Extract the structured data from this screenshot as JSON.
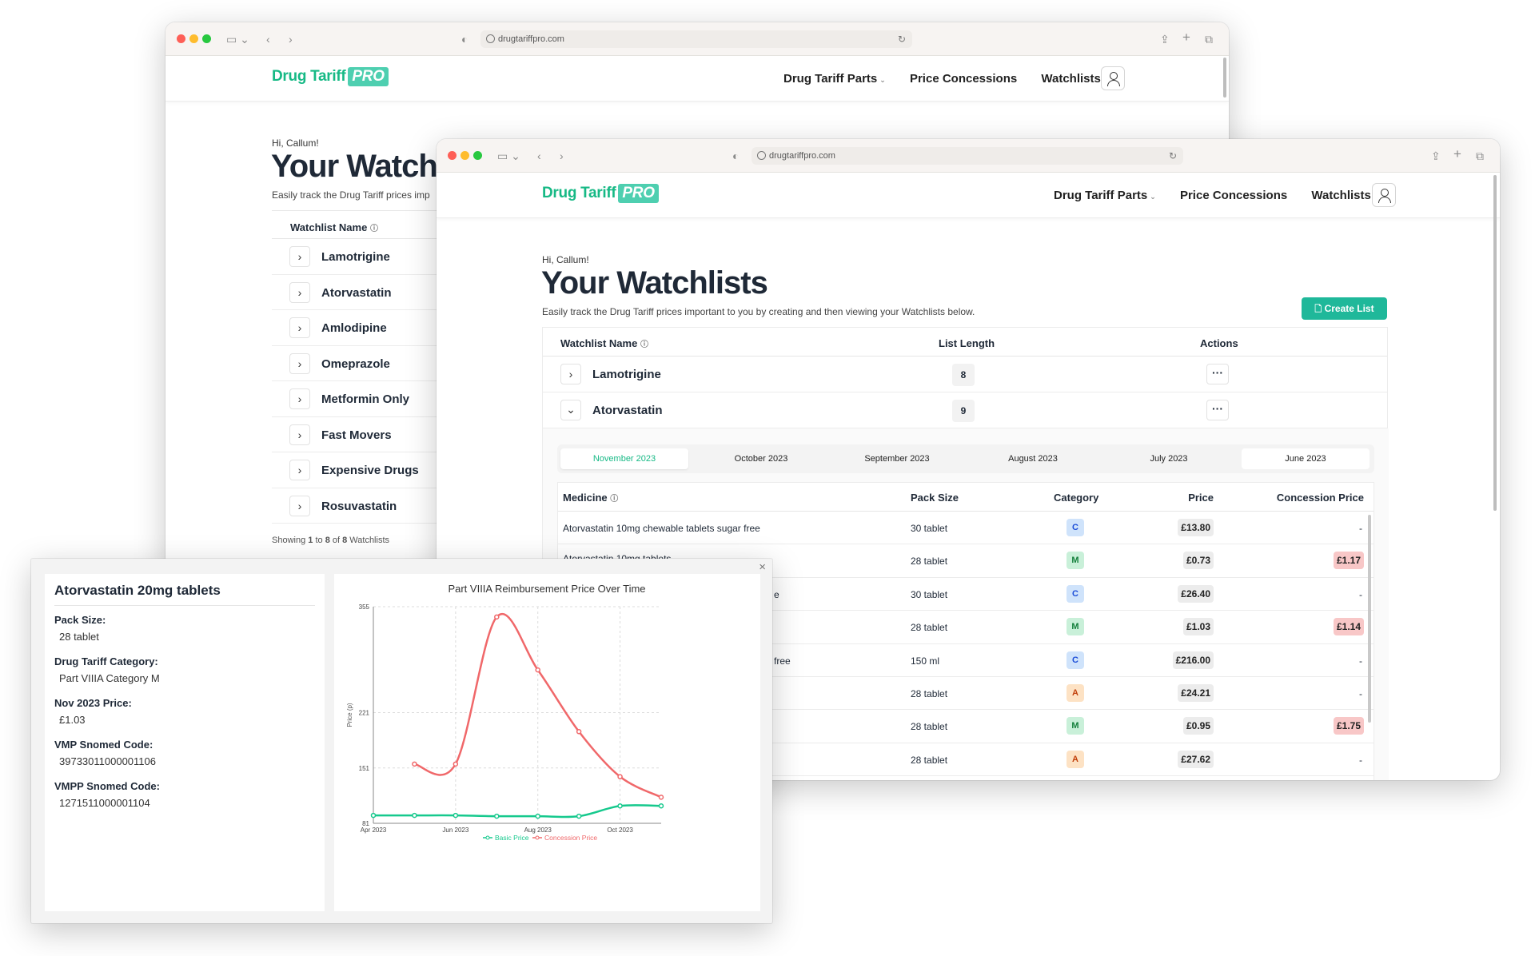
{
  "browser": {
    "url": "drugtariffpro.com"
  },
  "brand": {
    "name": "Drug Tariff",
    "badge": "PRO",
    "accent": "#16b985"
  },
  "nav": {
    "parts": "Drug Tariff Parts",
    "concessions": "Price Concessions",
    "watchlists": "Watchlists",
    "caret": "⌄"
  },
  "page": {
    "greeting": "Hi, Callum!",
    "title": "Your Watchlists",
    "title_back": "Your Watchli",
    "subtitle": "Easily track the Drug Tariff prices important to you by creating and then viewing your Watchlists below.",
    "subtitle_back": "Easily track the Drug Tariff prices imp",
    "create_button": "Create List",
    "showing": {
      "pre": "Showing ",
      "from": "1",
      "mid1": " to ",
      "to": "8",
      "mid2": " of ",
      "total": "8",
      "post": " Watchlists"
    }
  },
  "table": {
    "col_name": "Watchlist Name",
    "col_length": "List Length",
    "col_actions": "Actions",
    "back_rows": [
      "Lamotrigine",
      "Atorvastatin",
      "Amlodipine",
      "Omeprazole",
      "Metformin Only",
      "Fast Movers",
      "Expensive Drugs",
      "Rosuvastatin"
    ],
    "front_rows": [
      {
        "name": "Lamotrigine",
        "length": "8"
      },
      {
        "name": "Atorvastatin",
        "length": "9"
      }
    ]
  },
  "months": [
    "November 2023",
    "October 2023",
    "September 2023",
    "August 2023",
    "July 2023",
    "June 2023"
  ],
  "medicines": {
    "col_medicine": "Medicine",
    "col_pack": "Pack Size",
    "col_category": "Category",
    "col_price": "Price",
    "col_concession": "Concession Price",
    "rows": [
      {
        "name": "Atorvastatin 10mg chewable tablets sugar free",
        "pack": "30 tablet",
        "cat": "C",
        "price": "£13.80",
        "conc": "-"
      },
      {
        "name": "Atorvastatin 10mg tablets",
        "pack": "28 tablet",
        "cat": "M",
        "price": "£0.73",
        "conc": "£1.17"
      },
      {
        "name": "e",
        "pack": "30 tablet",
        "cat": "C",
        "price": "£26.40",
        "conc": "-"
      },
      {
        "name": "",
        "pack": "28 tablet",
        "cat": "M",
        "price": "£1.03",
        "conc": "£1.14"
      },
      {
        "name": "free",
        "pack": "150 ml",
        "cat": "C",
        "price": "£216.00",
        "conc": "-"
      },
      {
        "name": "",
        "pack": "28 tablet",
        "cat": "A",
        "price": "£24.21",
        "conc": "-"
      },
      {
        "name": "",
        "pack": "28 tablet",
        "cat": "M",
        "price": "£0.95",
        "conc": "£1.75"
      },
      {
        "name": "",
        "pack": "28 tablet",
        "cat": "A",
        "price": "£27.62",
        "conc": "-"
      }
    ],
    "cat_colors": {
      "C": "#cfe3fb",
      "M": "#c9f0d9",
      "A": "#fde2c4"
    },
    "cat_text": {
      "C": "#1d4ed8",
      "M": "#15803d",
      "A": "#c2410c"
    }
  },
  "detail": {
    "title": "Atorvastatin 20mg tablets",
    "pack_label": "Pack Size:",
    "pack_value": "28 tablet",
    "cat_label": "Drug Tariff Category:",
    "cat_value": "Part VIIIA Category M",
    "price_label": "Nov 2023 Price:",
    "price_value": "£1.03",
    "vmp_label": "VMP Snomed Code:",
    "vmp_value": "39733011000001106",
    "vmpp_label": "VMPP Snomed Code:",
    "vmpp_value": "1271511000001104",
    "close": "×"
  },
  "chart_data": {
    "type": "line",
    "title": "Part VIIIA Reimbursement Price Over Time",
    "xlabel": "",
    "ylabel": "Price (p)",
    "x_ticks": [
      "Apr 2023",
      "Jun 2023",
      "Aug 2023",
      "Oct 2023"
    ],
    "y_ticks": [
      81,
      151,
      221,
      355
    ],
    "ylim": [
      81,
      355
    ],
    "x": [
      "Apr 2023",
      "May 2023",
      "Jun 2023",
      "Jul 2023",
      "Aug 2023",
      "Sep 2023",
      "Oct 2023",
      "Nov 2023"
    ],
    "grid": true,
    "legend": "bottom",
    "series": [
      {
        "name": "Basic Price",
        "color": "#16c98d",
        "values": [
          91,
          91,
          91,
          90,
          90,
          90,
          103,
          103
        ]
      },
      {
        "name": "Concession Price",
        "color": "#f0686a",
        "values": [
          null,
          156,
          156,
          342,
          275,
          197,
          140,
          114
        ]
      }
    ]
  }
}
